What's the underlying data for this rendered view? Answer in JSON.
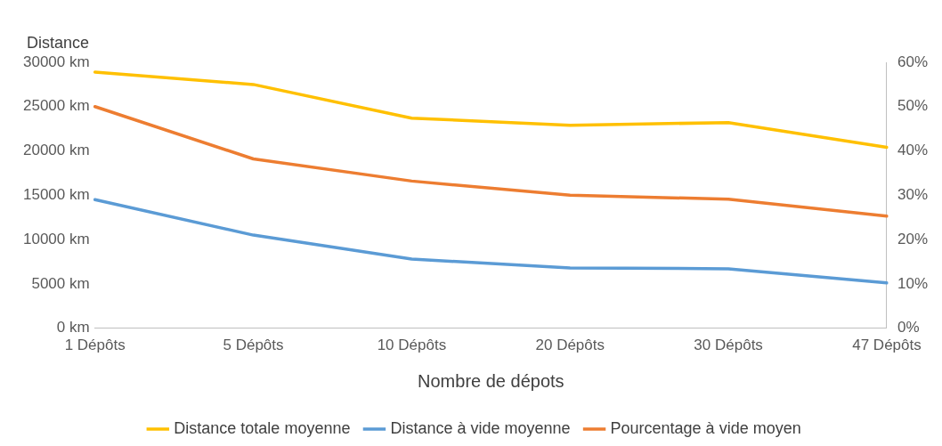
{
  "chart_data": {
    "type": "line",
    "xlabel": "Nombre de dépots",
    "ylabel": "Distance",
    "categories": [
      "1 Dépôts",
      "5 Dépôts",
      "10 Dépôts",
      "20 Dépôts",
      "30 Dépôts",
      "47 Dépôts"
    ],
    "series": [
      {
        "name": "Distance totale moyenne",
        "color": "#ffc000",
        "values": [
          28900,
          27500,
          23700,
          22900,
          23200,
          20400
        ]
      },
      {
        "name": "Distance à vide moyenne",
        "color": "#5b9bd5",
        "values": [
          14500,
          10500,
          7800,
          6800,
          6700,
          5100
        ]
      },
      {
        "name": "Pourcentage à vide moyen",
        "color": "#ed7d31",
        "axis": "y2",
        "values": [
          50,
          38.2,
          33.2,
          30,
          29.1,
          25.3
        ]
      }
    ],
    "ylim": [
      0,
      30000
    ],
    "yticks": [
      {
        "value": 0,
        "label": "0 km"
      },
      {
        "value": 5000,
        "label": "5000 km"
      },
      {
        "value": 10000,
        "label": "10000 km"
      },
      {
        "value": 15000,
        "label": "15000 km"
      },
      {
        "value": 20000,
        "label": "20000 km"
      },
      {
        "value": 25000,
        "label": "25000 km"
      },
      {
        "value": 30000,
        "label": "30000 km"
      }
    ],
    "y2lim": [
      0,
      60
    ],
    "y2ticks": [
      {
        "value": 0,
        "label": "0%"
      },
      {
        "value": 10,
        "label": "10%"
      },
      {
        "value": 20,
        "label": "20%"
      },
      {
        "value": 30,
        "label": "30%"
      },
      {
        "value": 40,
        "label": "40%"
      },
      {
        "value": 50,
        "label": "50%"
      },
      {
        "value": 60,
        "label": "60%"
      }
    ],
    "grid": false,
    "legend": "bottom",
    "marker": "none",
    "line_style": "solid"
  }
}
